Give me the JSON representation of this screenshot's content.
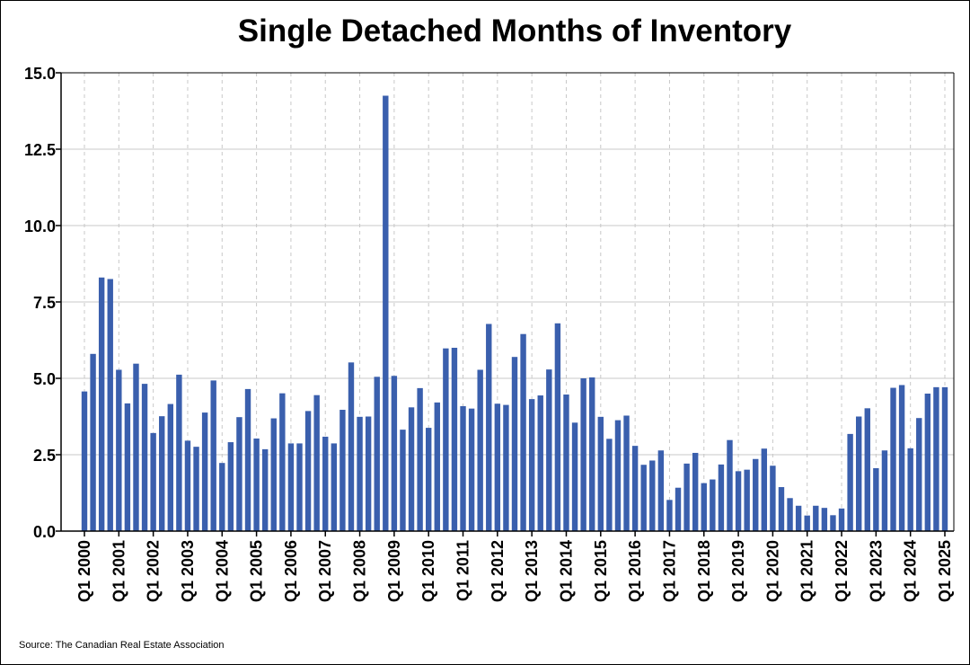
{
  "source_text": "Source: The Canadian Real Estate Association",
  "chart_data": {
    "type": "bar",
    "title": "Single Detached Months of Inventory",
    "xlabel": "",
    "ylabel": "",
    "ylim": [
      0,
      15
    ],
    "yticks": [
      "0.0",
      "2.5",
      "5.0",
      "7.5",
      "10.0",
      "12.5",
      "15.0"
    ],
    "grid": true,
    "bar_color": "#3a5fad",
    "start_label": "Q1 2000",
    "tick_labels": [
      "Q1 2000",
      "Q1 2001",
      "Q1 2002",
      "Q1 2003",
      "Q1 2004",
      "Q1 2005",
      "Q1 2006",
      "Q1 2007",
      "Q1 2008",
      "Q1 2009",
      "Q1 2010",
      "Q1 2011",
      "Q1 2012",
      "Q1 2013",
      "Q1 2014",
      "Q1 2015",
      "Q1 2016",
      "Q1 2017",
      "Q1 2018",
      "Q1 2019",
      "Q1 2020",
      "Q1 2021",
      "Q1 2022",
      "Q1 2023",
      "Q1 2024",
      "Q1 2025"
    ],
    "values": [
      4.57,
      5.8,
      8.3,
      8.25,
      5.28,
      4.18,
      5.48,
      4.82,
      3.21,
      3.76,
      4.16,
      5.12,
      2.96,
      2.76,
      3.88,
      4.93,
      2.23,
      2.91,
      3.73,
      4.65,
      3.03,
      2.68,
      3.69,
      4.51,
      2.87,
      2.87,
      3.93,
      4.45,
      3.09,
      2.87,
      3.97,
      5.52,
      3.74,
      3.75,
      5.05,
      14.25,
      5.08,
      3.32,
      4.05,
      4.68,
      3.38,
      4.21,
      5.98,
      6.0,
      4.09,
      4.01,
      5.28,
      6.78,
      4.17,
      4.13,
      5.7,
      6.45,
      4.32,
      4.44,
      5.29,
      6.8,
      4.47,
      3.55,
      5.0,
      5.03,
      3.74,
      3.02,
      3.63,
      3.78,
      2.79,
      2.17,
      2.31,
      2.64,
      1.02,
      1.42,
      2.21,
      2.56,
      1.57,
      1.69,
      2.18,
      2.98,
      1.96,
      2.01,
      2.36,
      2.7,
      2.14,
      1.44,
      1.08,
      0.83,
      0.51,
      0.83,
      0.76,
      0.52,
      0.74,
      3.18,
      3.75,
      4.02,
      2.06,
      2.64,
      4.69,
      4.78,
      2.71,
      3.7,
      4.5,
      4.71,
      4.71
    ]
  }
}
